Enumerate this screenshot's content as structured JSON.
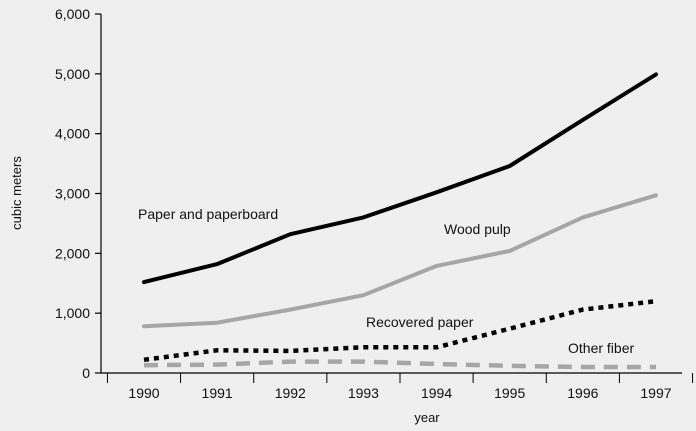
{
  "chart_data": {
    "type": "line",
    "xlabel": "year",
    "ylabel": "cubic meters",
    "ylim": [
      0,
      6000
    ],
    "yticks": [
      0,
      1000,
      2000,
      3000,
      4000,
      5000,
      6000
    ],
    "ytick_labels": [
      "0",
      "1,000",
      "2,000",
      "3,000",
      "4,000",
      "5,000",
      "6,000"
    ],
    "x": [
      "1990",
      "1991",
      "1992",
      "1993",
      "1994",
      "1995",
      "1996",
      "1997"
    ],
    "series": [
      {
        "name": "Paper and paperboard",
        "values": [
          1520,
          1820,
          2320,
          2600,
          3020,
          3460,
          4230,
          4990
        ],
        "color": "#000000",
        "style": "solid"
      },
      {
        "name": "Wood pulp",
        "values": [
          780,
          840,
          1060,
          1300,
          1790,
          2040,
          2600,
          2970
        ],
        "color": "#a6a6a6",
        "style": "solid"
      },
      {
        "name": "Recovered paper",
        "values": [
          220,
          380,
          370,
          430,
          430,
          740,
          1060,
          1200
        ],
        "color": "#000000",
        "style": "dotted"
      },
      {
        "name": "Other fiber",
        "values": [
          130,
          140,
          190,
          190,
          150,
          120,
          100,
          100
        ],
        "color": "#a6a6a6",
        "style": "dashed"
      }
    ],
    "grid": false,
    "legend": "inline labels"
  }
}
